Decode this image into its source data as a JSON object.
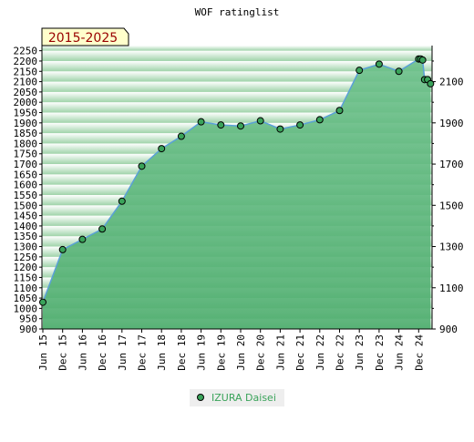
{
  "chart_data": {
    "type": "area",
    "title": "WOF ratinglist",
    "badge": "2015-2025",
    "xlabel": "",
    "ylabel": "",
    "ylim": [
      900,
      2275
    ],
    "y_ticks_left": [
      900,
      950,
      1000,
      1050,
      1100,
      1150,
      1200,
      1250,
      1300,
      1350,
      1400,
      1450,
      1500,
      1550,
      1600,
      1650,
      1700,
      1750,
      1800,
      1850,
      1900,
      1950,
      2000,
      2050,
      2100,
      2150,
      2200,
      2250
    ],
    "y_ticks_right": [
      900,
      1100,
      1300,
      1500,
      1700,
      1900,
      2100
    ],
    "x_ticks": [
      "Jun 15",
      "Dec 15",
      "Jun 16",
      "Dec 16",
      "Jun 17",
      "Dec 17",
      "Jun 18",
      "Dec 18",
      "Jun 19",
      "Dec 19",
      "Jun 20",
      "Dec 20",
      "Jun 21",
      "Dec 21",
      "Jun 22",
      "Dec 22",
      "Jun 23",
      "Dec 23",
      "Jun 24",
      "Dec 24"
    ],
    "grid": true,
    "legend_position": "bottom-center",
    "series": [
      {
        "name": "IZURA Daisei",
        "color": "#3aa35a",
        "points": [
          {
            "x": "Jun 15",
            "y": 1030
          },
          {
            "x": "Dec 15",
            "y": 1285
          },
          {
            "x": "Jun 16",
            "y": 1335
          },
          {
            "x": "Dec 16",
            "y": 1385
          },
          {
            "x": "Jun 17",
            "y": 1520
          },
          {
            "x": "Dec 17",
            "y": 1690
          },
          {
            "x": "Jun 18",
            "y": 1775
          },
          {
            "x": "Dec 18",
            "y": 1835
          },
          {
            "x": "Jun 19",
            "y": 1905
          },
          {
            "x": "Dec 19",
            "y": 1890
          },
          {
            "x": "Jun 20",
            "y": 1885
          },
          {
            "x": "Dec 20",
            "y": 1910
          },
          {
            "x": "Jun 21",
            "y": 1870
          },
          {
            "x": "Dec 21",
            "y": 1890
          },
          {
            "x": "Jun 22",
            "y": 1915
          },
          {
            "x": "Dec 22",
            "y": 1960
          },
          {
            "x": "Jun 23",
            "y": 2155
          },
          {
            "x": "Dec 23",
            "y": 2185
          },
          {
            "x": "Jun 24",
            "y": 2150
          },
          {
            "x": "Dec 24",
            "y": 2210
          },
          {
            "x": "Dec 24",
            "y": 2210,
            "offset": 0.1
          },
          {
            "x": "Dec 24",
            "y": 2205,
            "offset": 0.2
          },
          {
            "x": "Dec 24",
            "y": 2110,
            "offset": 0.3
          },
          {
            "x": "Dec 24",
            "y": 2110,
            "offset": 0.45
          },
          {
            "x": "Dec 24",
            "y": 2090,
            "offset": 0.6
          }
        ]
      }
    ]
  }
}
